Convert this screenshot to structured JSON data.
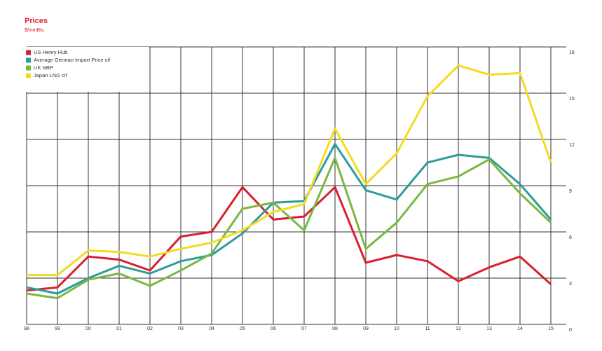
{
  "chart_data": {
    "type": "line",
    "title": "Prices",
    "subtitle": "$/mmBtu",
    "categories": [
      "98",
      "99",
      "00",
      "01",
      "02",
      "03",
      "04",
      "05",
      "06",
      "07",
      "08",
      "09",
      "10",
      "11",
      "12",
      "13",
      "14",
      "15"
    ],
    "series": [
      {
        "name": "US Henry Hub",
        "color": "#d9202f",
        "values": [
          2.2,
          2.4,
          4.4,
          4.2,
          3.5,
          5.7,
          6.0,
          8.9,
          6.8,
          7.0,
          8.9,
          4.0,
          4.5,
          4.1,
          2.8,
          3.7,
          4.4,
          2.6
        ]
      },
      {
        "name": "Average German Import Price cif",
        "color": "#2e9c9c",
        "values": [
          2.4,
          2.0,
          3.0,
          3.8,
          3.3,
          4.1,
          4.5,
          5.9,
          7.9,
          8.0,
          11.7,
          8.7,
          8.1,
          10.5,
          11.0,
          10.8,
          9.1,
          6.8
        ]
      },
      {
        "name": "UK NBP",
        "color": "#7ab840",
        "values": [
          2.0,
          1.7,
          2.9,
          3.3,
          2.5,
          3.5,
          4.6,
          7.5,
          7.9,
          6.1,
          10.8,
          4.9,
          6.6,
          9.1,
          9.6,
          10.7,
          8.5,
          6.6
        ]
      },
      {
        "name": "Japan LNG cif",
        "color": "#f2dc22",
        "values": [
          3.2,
          3.2,
          4.8,
          4.7,
          4.4,
          4.9,
          5.3,
          6.1,
          7.3,
          7.8,
          12.7,
          9.1,
          11.1,
          14.8,
          16.8,
          16.2,
          16.3,
          10.5
        ]
      }
    ],
    "ylim": [
      0,
      18
    ],
    "yticks": [
      0,
      3,
      6,
      9,
      12,
      15,
      18
    ],
    "grid": true,
    "legend": "top-left"
  }
}
